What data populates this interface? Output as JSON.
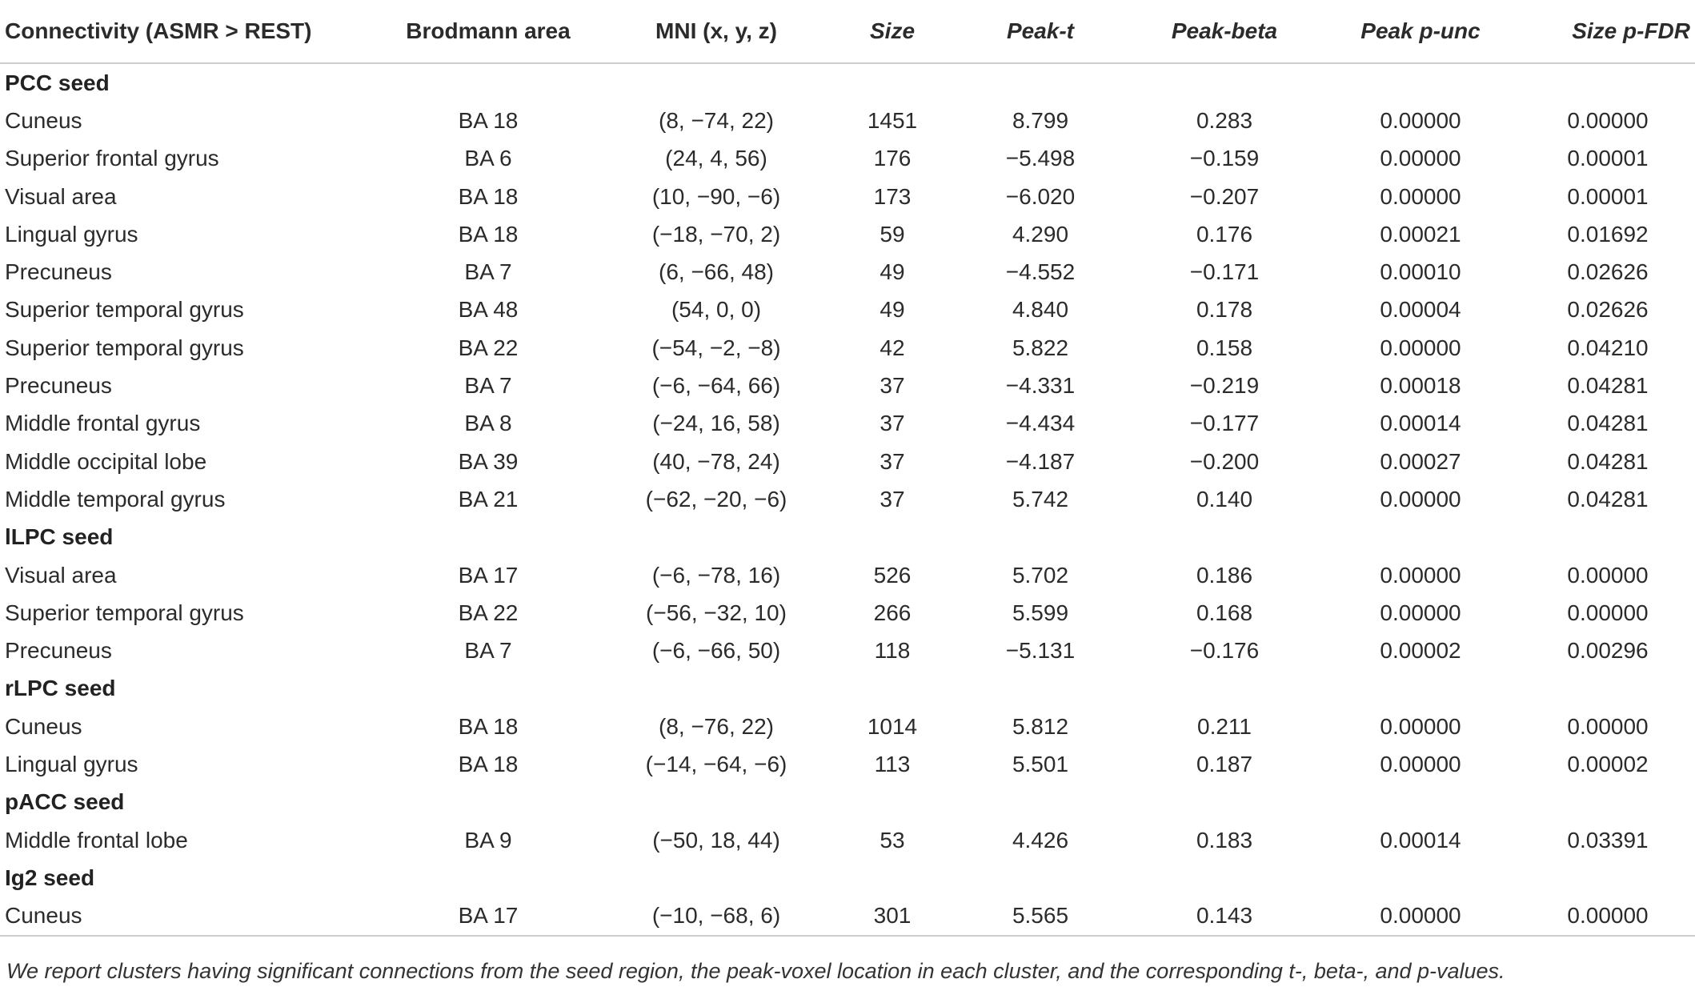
{
  "headers": {
    "connectivity": "Connectivity (ASMR > REST)",
    "brodmann": "Brodmann area",
    "mni": "MNI (x, y, z)",
    "size": "Size",
    "peak_t": "Peak-t",
    "peak_beta": "Peak-beta",
    "peak_p_unc": "Peak p-unc",
    "size_p_fdr": "Size p-FDR"
  },
  "sections": [
    {
      "title": "PCC seed",
      "rows": [
        {
          "region": "Cuneus",
          "ba": "BA 18",
          "mni": "(8, −74, 22)",
          "size": "1451",
          "t": "8.799",
          "beta": "0.283",
          "punc": "0.00000",
          "pfdr": "0.00000"
        },
        {
          "region": "Superior frontal gyrus",
          "ba": "BA 6",
          "mni": "(24, 4, 56)",
          "size": "176",
          "t": "−5.498",
          "beta": "−0.159",
          "punc": "0.00000",
          "pfdr": "0.00001"
        },
        {
          "region": "Visual area",
          "ba": "BA 18",
          "mni": "(10, −90, −6)",
          "size": "173",
          "t": "−6.020",
          "beta": "−0.207",
          "punc": "0.00000",
          "pfdr": "0.00001"
        },
        {
          "region": "Lingual gyrus",
          "ba": "BA 18",
          "mni": "(−18, −70, 2)",
          "size": "59",
          "t": "4.290",
          "beta": "0.176",
          "punc": "0.00021",
          "pfdr": "0.01692"
        },
        {
          "region": "Precuneus",
          "ba": "BA 7",
          "mni": "(6, −66, 48)",
          "size": "49",
          "t": "−4.552",
          "beta": "−0.171",
          "punc": "0.00010",
          "pfdr": "0.02626"
        },
        {
          "region": "Superior temporal gyrus",
          "ba": "BA 48",
          "mni": "(54, 0, 0)",
          "size": "49",
          "t": "4.840",
          "beta": "0.178",
          "punc": "0.00004",
          "pfdr": "0.02626"
        },
        {
          "region": "Superior temporal gyrus",
          "ba": "BA 22",
          "mni": "(−54, −2, −8)",
          "size": "42",
          "t": "5.822",
          "beta": "0.158",
          "punc": "0.00000",
          "pfdr": "0.04210"
        },
        {
          "region": "Precuneus",
          "ba": "BA 7",
          "mni": "(−6, −64, 66)",
          "size": "37",
          "t": "−4.331",
          "beta": "−0.219",
          "punc": "0.00018",
          "pfdr": "0.04281"
        },
        {
          "region": "Middle frontal gyrus",
          "ba": "BA 8",
          "mni": "(−24, 16, 58)",
          "size": "37",
          "t": "−4.434",
          "beta": "−0.177",
          "punc": "0.00014",
          "pfdr": "0.04281"
        },
        {
          "region": "Middle occipital lobe",
          "ba": "BA 39",
          "mni": "(40, −78, 24)",
          "size": "37",
          "t": "−4.187",
          "beta": "−0.200",
          "punc": "0.00027",
          "pfdr": "0.04281"
        },
        {
          "region": "Middle temporal gyrus",
          "ba": "BA 21",
          "mni": "(−62, −20, −6)",
          "size": "37",
          "t": "5.742",
          "beta": "0.140",
          "punc": "0.00000",
          "pfdr": "0.04281"
        }
      ]
    },
    {
      "title": "lLPC seed",
      "rows": [
        {
          "region": "Visual area",
          "ba": "BA 17",
          "mni": "(−6, −78, 16)",
          "size": "526",
          "t": "5.702",
          "beta": "0.186",
          "punc": "0.00000",
          "pfdr": "0.00000"
        },
        {
          "region": "Superior temporal gyrus",
          "ba": "BA 22",
          "mni": "(−56, −32, 10)",
          "size": "266",
          "t": "5.599",
          "beta": "0.168",
          "punc": "0.00000",
          "pfdr": "0.00000"
        },
        {
          "region": "Precuneus",
          "ba": "BA 7",
          "mni": "(−6, −66, 50)",
          "size": "118",
          "t": "−5.131",
          "beta": "−0.176",
          "punc": "0.00002",
          "pfdr": "0.00296"
        }
      ]
    },
    {
      "title": "rLPC seed",
      "rows": [
        {
          "region": "Cuneus",
          "ba": "BA 18",
          "mni": "(8, −76, 22)",
          "size": "1014",
          "t": "5.812",
          "beta": "0.211",
          "punc": "0.00000",
          "pfdr": "0.00000"
        },
        {
          "region": "Lingual gyrus",
          "ba": "BA 18",
          "mni": "(−14, −64, −6)",
          "size": "113",
          "t": "5.501",
          "beta": "0.187",
          "punc": "0.00000",
          "pfdr": "0.00002"
        }
      ]
    },
    {
      "title": "pACC seed",
      "rows": [
        {
          "region": "Middle frontal lobe",
          "ba": "BA 9",
          "mni": "(−50, 18, 44)",
          "size": "53",
          "t": "4.426",
          "beta": "0.183",
          "punc": "0.00014",
          "pfdr": "0.03391"
        }
      ]
    },
    {
      "title": "Ig2 seed",
      "rows": [
        {
          "region": "Cuneus",
          "ba": "BA 17",
          "mni": "(−10, −68, 6)",
          "size": "301",
          "t": "5.565",
          "beta": "0.143",
          "punc": "0.00000",
          "pfdr": "0.00000"
        }
      ]
    }
  ],
  "footnote": "We report clusters having significant connections from the seed region, the peak-voxel location in each cluster, and the corresponding t-, beta-, and p-values."
}
